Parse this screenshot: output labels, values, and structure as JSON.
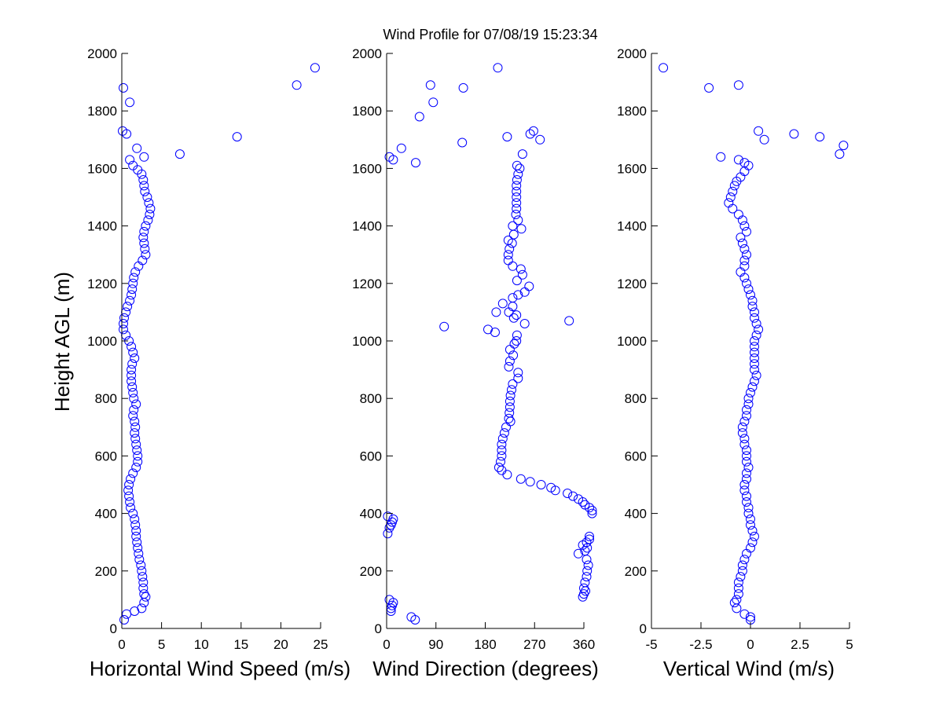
{
  "title": "Wind Profile for  07/08/19 15:23:34",
  "colors": {
    "marker": "#0000ff",
    "axis": "#000000",
    "background": "#ffffff"
  },
  "chart_data": [
    {
      "type": "scatter",
      "xlabel": "Horizontal Wind Speed (m/s)",
      "ylabel": "Height AGL (m)",
      "xlim": [
        0,
        25
      ],
      "ylim": [
        0,
        2000
      ],
      "xticks": [
        0,
        5,
        10,
        15,
        20,
        25
      ],
      "xtick_labels": [
        "0",
        "5",
        "10",
        "15",
        "20",
        "25"
      ],
      "yticks": [
        0,
        200,
        400,
        600,
        800,
        1000,
        1200,
        1400,
        1600,
        1800,
        2000
      ],
      "ytick_labels": [
        "0",
        "200",
        "400",
        "600",
        "800",
        "1000",
        "1200",
        "1400",
        "1600",
        "1800",
        "2000"
      ],
      "grid": false,
      "marker": "circle-open",
      "points": [
        [
          24.3,
          1950
        ],
        [
          22.0,
          1890
        ],
        [
          0.2,
          1880
        ],
        [
          1.0,
          1830
        ],
        [
          0.1,
          1730
        ],
        [
          0.6,
          1720
        ],
        [
          14.5,
          1710
        ],
        [
          1.9,
          1670
        ],
        [
          7.3,
          1650
        ],
        [
          2.8,
          1640
        ],
        [
          1.0,
          1630
        ],
        [
          1.4,
          1610
        ],
        [
          2.0,
          1595
        ],
        [
          2.5,
          1580
        ],
        [
          2.7,
          1560
        ],
        [
          2.8,
          1540
        ],
        [
          2.9,
          1520
        ],
        [
          3.2,
          1500
        ],
        [
          3.4,
          1480
        ],
        [
          3.6,
          1460
        ],
        [
          3.5,
          1440
        ],
        [
          3.3,
          1420
        ],
        [
          3.0,
          1400
        ],
        [
          2.8,
          1380
        ],
        [
          2.7,
          1360
        ],
        [
          2.8,
          1340
        ],
        [
          2.9,
          1320
        ],
        [
          3.0,
          1300
        ],
        [
          2.6,
          1280
        ],
        [
          2.1,
          1260
        ],
        [
          1.7,
          1240
        ],
        [
          1.5,
          1220
        ],
        [
          1.4,
          1200
        ],
        [
          1.3,
          1180
        ],
        [
          1.2,
          1160
        ],
        [
          1.0,
          1140
        ],
        [
          0.7,
          1120
        ],
        [
          0.5,
          1100
        ],
        [
          0.3,
          1080
        ],
        [
          0.2,
          1060
        ],
        [
          0.2,
          1040
        ],
        [
          0.5,
          1020
        ],
        [
          0.9,
          1000
        ],
        [
          1.2,
          980
        ],
        [
          1.4,
          960
        ],
        [
          1.6,
          940
        ],
        [
          1.3,
          920
        ],
        [
          1.2,
          900
        ],
        [
          1.2,
          880
        ],
        [
          1.2,
          860
        ],
        [
          1.3,
          840
        ],
        [
          1.4,
          820
        ],
        [
          1.5,
          800
        ],
        [
          1.8,
          780
        ],
        [
          1.5,
          760
        ],
        [
          1.4,
          740
        ],
        [
          1.6,
          720
        ],
        [
          1.7,
          700
        ],
        [
          1.6,
          680
        ],
        [
          1.7,
          660
        ],
        [
          1.8,
          640
        ],
        [
          1.9,
          620
        ],
        [
          2.0,
          600
        ],
        [
          2.0,
          580
        ],
        [
          1.8,
          560
        ],
        [
          1.4,
          540
        ],
        [
          1.1,
          520
        ],
        [
          0.9,
          500
        ],
        [
          0.8,
          480
        ],
        [
          0.9,
          460
        ],
        [
          1.0,
          440
        ],
        [
          1.1,
          420
        ],
        [
          1.4,
          400
        ],
        [
          1.6,
          380
        ],
        [
          1.7,
          360
        ],
        [
          1.8,
          340
        ],
        [
          1.8,
          320
        ],
        [
          1.9,
          300
        ],
        [
          2.0,
          280
        ],
        [
          2.1,
          260
        ],
        [
          2.2,
          240
        ],
        [
          2.4,
          220
        ],
        [
          2.5,
          200
        ],
        [
          2.6,
          180
        ],
        [
          2.7,
          160
        ],
        [
          2.7,
          140
        ],
        [
          2.8,
          120
        ],
        [
          3.0,
          110
        ],
        [
          2.8,
          90
        ],
        [
          2.5,
          70
        ],
        [
          1.6,
          60
        ],
        [
          0.6,
          50
        ],
        [
          0.3,
          30
        ]
      ]
    },
    {
      "type": "scatter",
      "xlabel": "Wind Direction (degrees)",
      "ylabel": "",
      "xlim": [
        0,
        360
      ],
      "ylim": [
        0,
        2000
      ],
      "xticks": [
        0,
        90,
        180,
        270,
        360
      ],
      "xtick_labels": [
        "0",
        "90",
        "180",
        "270",
        "360"
      ],
      "yticks": [
        0,
        200,
        400,
        600,
        800,
        1000,
        1200,
        1400,
        1600,
        1800,
        2000
      ],
      "ytick_labels": [
        "0",
        "200",
        "400",
        "600",
        "800",
        "1000",
        "1200",
        "1400",
        "1600",
        "1800",
        "2000"
      ],
      "grid": false,
      "marker": "circle-open",
      "points": [
        [
          203,
          1950
        ],
        [
          80,
          1890
        ],
        [
          140,
          1880
        ],
        [
          85,
          1830
        ],
        [
          60,
          1780
        ],
        [
          268,
          1730
        ],
        [
          262,
          1720
        ],
        [
          220,
          1710
        ],
        [
          280,
          1700
        ],
        [
          138,
          1690
        ],
        [
          27,
          1670
        ],
        [
          248,
          1650
        ],
        [
          5,
          1640
        ],
        [
          12,
          1630
        ],
        [
          53,
          1620
        ],
        [
          238,
          1610
        ],
        [
          243,
          1600
        ],
        [
          240,
          1580
        ],
        [
          238,
          1560
        ],
        [
          237,
          1540
        ],
        [
          237,
          1520
        ],
        [
          237,
          1500
        ],
        [
          237,
          1480
        ],
        [
          237,
          1460
        ],
        [
          236,
          1440
        ],
        [
          240,
          1420
        ],
        [
          230,
          1400
        ],
        [
          246,
          1390
        ],
        [
          232,
          1370
        ],
        [
          222,
          1350
        ],
        [
          229,
          1340
        ],
        [
          224,
          1320
        ],
        [
          222,
          1300
        ],
        [
          222,
          1280
        ],
        [
          230,
          1260
        ],
        [
          245,
          1250
        ],
        [
          248,
          1230
        ],
        [
          238,
          1210
        ],
        [
          260,
          1190
        ],
        [
          252,
          1170
        ],
        [
          240,
          1160
        ],
        [
          230,
          1150
        ],
        [
          212,
          1130
        ],
        [
          230,
          1120
        ],
        [
          200,
          1100
        ],
        [
          223,
          1100
        ],
        [
          237,
          1090
        ],
        [
          232,
          1080
        ],
        [
          333,
          1070
        ],
        [
          252,
          1060
        ],
        [
          105,
          1050
        ],
        [
          185,
          1040
        ],
        [
          198,
          1030
        ],
        [
          238,
          1020
        ],
        [
          237,
          1000
        ],
        [
          233,
          990
        ],
        [
          225,
          970
        ],
        [
          231,
          950
        ],
        [
          225,
          930
        ],
        [
          223,
          910
        ],
        [
          240,
          890
        ],
        [
          240,
          870
        ],
        [
          230,
          850
        ],
        [
          228,
          830
        ],
        [
          226,
          810
        ],
        [
          225,
          790
        ],
        [
          225,
          770
        ],
        [
          224,
          750
        ],
        [
          223,
          730
        ],
        [
          226,
          720
        ],
        [
          218,
          700
        ],
        [
          215,
          680
        ],
        [
          212,
          660
        ],
        [
          210,
          640
        ],
        [
          210,
          620
        ],
        [
          210,
          600
        ],
        [
          208,
          580
        ],
        [
          205,
          560
        ],
        [
          210,
          550
        ],
        [
          220,
          535
        ],
        [
          245,
          520
        ],
        [
          262,
          510
        ],
        [
          282,
          500
        ],
        [
          300,
          490
        ],
        [
          308,
          480
        ],
        [
          330,
          470
        ],
        [
          340,
          460
        ],
        [
          350,
          450
        ],
        [
          358,
          440
        ],
        [
          362,
          430
        ],
        [
          370,
          420
        ],
        [
          375,
          410
        ],
        [
          375,
          400
        ],
        [
          2,
          390
        ],
        [
          12,
          380
        ],
        [
          10,
          370
        ],
        [
          8,
          360
        ],
        [
          5,
          350
        ],
        [
          2,
          330
        ],
        [
          370,
          320
        ],
        [
          370,
          310
        ],
        [
          365,
          300
        ],
        [
          358,
          290
        ],
        [
          366,
          280
        ],
        [
          362,
          270
        ],
        [
          350,
          260
        ],
        [
          365,
          240
        ],
        [
          368,
          220
        ],
        [
          366,
          200
        ],
        [
          365,
          180
        ],
        [
          362,
          160
        ],
        [
          360,
          140
        ],
        [
          363,
          130
        ],
        [
          360,
          120
        ],
        [
          358,
          110
        ],
        [
          5,
          100
        ],
        [
          12,
          90
        ],
        [
          10,
          80
        ],
        [
          8,
          70
        ],
        [
          8,
          60
        ],
        [
          45,
          40
        ],
        [
          52,
          30
        ]
      ]
    },
    {
      "type": "scatter",
      "xlabel": "Vertical Wind (m/s)",
      "ylabel": "",
      "xlim": [
        -5,
        5
      ],
      "ylim": [
        0,
        2000
      ],
      "xticks": [
        -5,
        -2.5,
        0,
        2.5,
        5
      ],
      "xtick_labels": [
        "-5",
        "-2.5",
        "0",
        "2.5",
        "5"
      ],
      "yticks": [
        0,
        200,
        400,
        600,
        800,
        1000,
        1200,
        1400,
        1600,
        1800,
        2000
      ],
      "ytick_labels": [
        "0",
        "200",
        "400",
        "600",
        "800",
        "1000",
        "1200",
        "1400",
        "1600",
        "1800",
        "2000"
      ],
      "grid": false,
      "marker": "circle-open",
      "points": [
        [
          -4.4,
          1950
        ],
        [
          -0.6,
          1890
        ],
        [
          -2.1,
          1880
        ],
        [
          0.4,
          1730
        ],
        [
          2.2,
          1720
        ],
        [
          3.5,
          1710
        ],
        [
          0.7,
          1700
        ],
        [
          4.7,
          1680
        ],
        [
          4.5,
          1650
        ],
        [
          -1.5,
          1640
        ],
        [
          -0.6,
          1630
        ],
        [
          -0.3,
          1620
        ],
        [
          -0.1,
          1610
        ],
        [
          -0.3,
          1590
        ],
        [
          -0.5,
          1570
        ],
        [
          -0.7,
          1555
        ],
        [
          -0.8,
          1540
        ],
        [
          -0.9,
          1520
        ],
        [
          -1.0,
          1500
        ],
        [
          -1.1,
          1480
        ],
        [
          -0.9,
          1460
        ],
        [
          -0.6,
          1440
        ],
        [
          -0.4,
          1420
        ],
        [
          -0.3,
          1400
        ],
        [
          -0.2,
          1380
        ],
        [
          -0.5,
          1360
        ],
        [
          -0.4,
          1340
        ],
        [
          -0.3,
          1320
        ],
        [
          -0.2,
          1300
        ],
        [
          -0.3,
          1280
        ],
        [
          -0.3,
          1260
        ],
        [
          -0.5,
          1240
        ],
        [
          -0.3,
          1220
        ],
        [
          -0.2,
          1200
        ],
        [
          -0.1,
          1180
        ],
        [
          0.0,
          1160
        ],
        [
          0.1,
          1140
        ],
        [
          0.1,
          1120
        ],
        [
          0.2,
          1100
        ],
        [
          0.2,
          1080
        ],
        [
          0.3,
          1060
        ],
        [
          0.4,
          1040
        ],
        [
          0.3,
          1020
        ],
        [
          0.2,
          1000
        ],
        [
          0.2,
          980
        ],
        [
          0.2,
          960
        ],
        [
          0.2,
          940
        ],
        [
          0.2,
          920
        ],
        [
          0.2,
          900
        ],
        [
          0.3,
          880
        ],
        [
          0.2,
          860
        ],
        [
          0.1,
          840
        ],
        [
          0.0,
          820
        ],
        [
          -0.1,
          800
        ],
        [
          -0.1,
          780
        ],
        [
          -0.2,
          760
        ],
        [
          -0.2,
          740
        ],
        [
          -0.3,
          720
        ],
        [
          -0.4,
          700
        ],
        [
          -0.4,
          680
        ],
        [
          -0.3,
          660
        ],
        [
          -0.3,
          640
        ],
        [
          -0.2,
          620
        ],
        [
          -0.2,
          600
        ],
        [
          -0.2,
          580
        ],
        [
          -0.1,
          560
        ],
        [
          -0.2,
          540
        ],
        [
          -0.2,
          520
        ],
        [
          -0.3,
          500
        ],
        [
          -0.3,
          480
        ],
        [
          -0.2,
          460
        ],
        [
          -0.2,
          440
        ],
        [
          -0.1,
          420
        ],
        [
          -0.1,
          400
        ],
        [
          0.0,
          380
        ],
        [
          0.0,
          360
        ],
        [
          0.1,
          340
        ],
        [
          0.2,
          320
        ],
        [
          0.1,
          300
        ],
        [
          0.0,
          280
        ],
        [
          -0.2,
          260
        ],
        [
          -0.3,
          240
        ],
        [
          -0.4,
          220
        ],
        [
          -0.4,
          200
        ],
        [
          -0.5,
          180
        ],
        [
          -0.6,
          160
        ],
        [
          -0.6,
          140
        ],
        [
          -0.6,
          120
        ],
        [
          -0.7,
          100
        ],
        [
          -0.8,
          90
        ],
        [
          -0.7,
          70
        ],
        [
          -0.3,
          50
        ],
        [
          0.0,
          40
        ],
        [
          0.0,
          30
        ]
      ]
    }
  ]
}
